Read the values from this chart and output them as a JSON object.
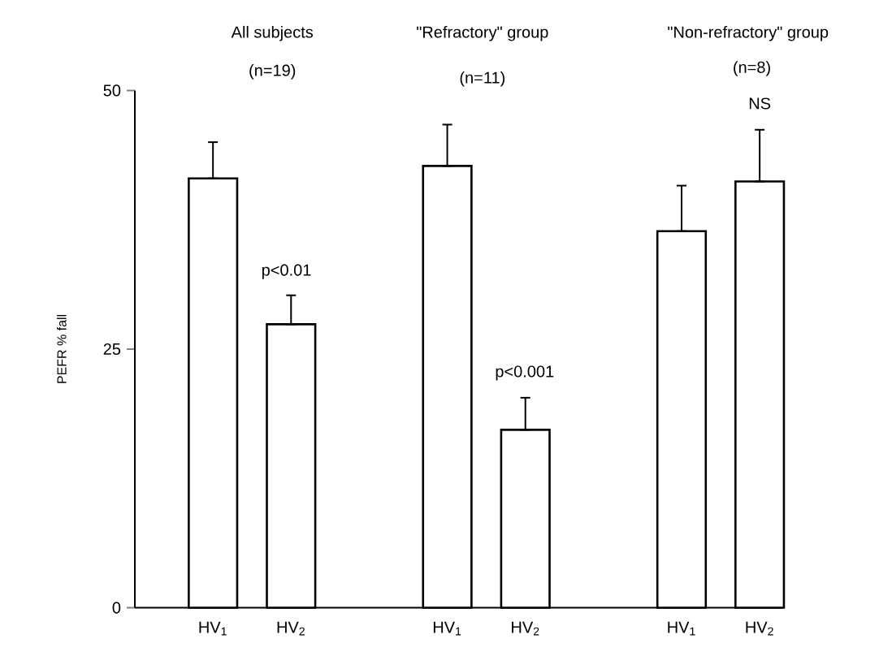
{
  "chart_data": {
    "type": "bar",
    "ylabel": "PEFR % fall",
    "categories": [
      "HV$_{1}$",
      "HV$_{2}$",
      null,
      "HV$_{1}$",
      "HV$_{2}$",
      null,
      "HV$_{1}$",
      "HV$_{2}$"
    ],
    "values": [
      41.5,
      27.4,
      null,
      42.7,
      17.2,
      null,
      36.4,
      41.2
    ],
    "errors": [
      [
        41.5,
        45.0
      ],
      [
        27.4,
        30.2
      ],
      null,
      [
        42.7,
        46.7
      ],
      [
        17.2,
        20.3
      ],
      null,
      [
        36.4,
        40.8
      ],
      [
        41.2,
        46.2
      ]
    ],
    "color": "#ffffff",
    "ylim": [
      0,
      50
    ],
    "yticks": [
      0,
      25,
      50
    ],
    "grid": false,
    "annotations": [
      "All subjects",
      "(n=19)",
      "\"Refractory\" group",
      "(n=11)",
      "\"Non-refractory\" group",
      "(n=8)",
      "p<0.01",
      "p<0.001",
      "NS"
    ]
  }
}
